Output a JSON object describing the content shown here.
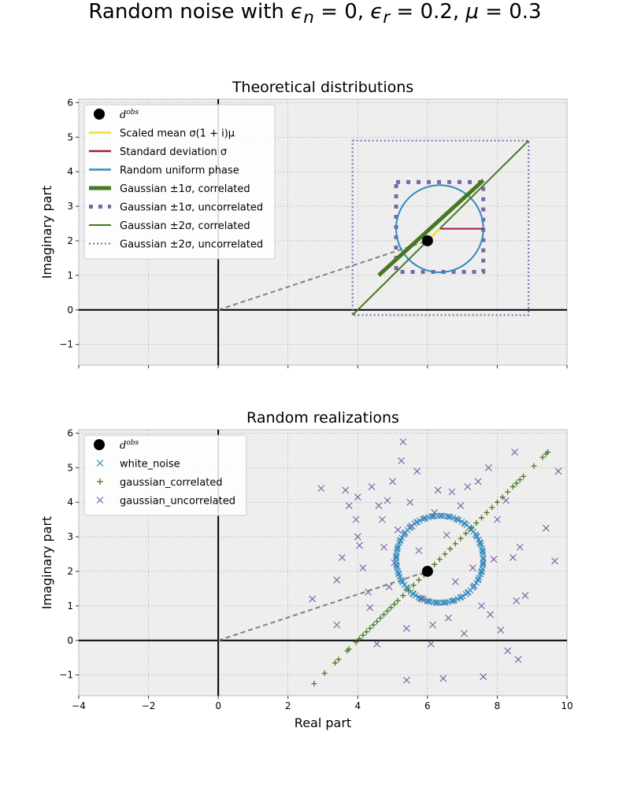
{
  "title": "Random noise with εn = 0, εr = 0.2, μ = 0.3",
  "colors": {
    "background": "#eeeeee",
    "grid": "#b0b0b0",
    "axis": "#000000",
    "obs": "#000000",
    "scaled_mean": "#f2dc38",
    "std": "#a21d34",
    "uniform_phase": "#348abd",
    "correlated": "#467821",
    "uncorrelated": "#7a68a6",
    "dashed": "#808080"
  },
  "chart_data": [
    {
      "type": "line",
      "title": "Theoretical distributions",
      "xlabel": "",
      "ylabel": "Imaginary part",
      "xlim": [
        -4,
        10
      ],
      "ylim": [
        -1.6,
        6.1
      ],
      "xticks": [
        "−4",
        "−2",
        "0",
        "2",
        "4",
        "6",
        "8",
        "10"
      ],
      "yticks": [
        "−1",
        "0",
        "1",
        "2",
        "3",
        "4",
        "5",
        "6"
      ],
      "tick_labels_x_visible": false,
      "grid": true,
      "legend_position": "top-left",
      "obs_point": [
        6.0,
        2.0
      ],
      "dashed_line": {
        "x": [
          0,
          6.0
        ],
        "y": [
          0,
          2.0
        ]
      },
      "circle": {
        "center": [
          6.35,
          2.35
        ],
        "radius": 1.25
      },
      "scaled_mean": {
        "x": [
          6.0,
          6.35
        ],
        "y": [
          2.0,
          2.35
        ]
      },
      "std_segment": {
        "x": [
          6.35,
          7.6
        ],
        "y": [
          2.35,
          2.35
        ]
      },
      "correlated_1sigma": {
        "x": [
          4.6,
          7.6
        ],
        "y": [
          1.0,
          3.75
        ]
      },
      "correlated_2sigma": {
        "x": [
          3.85,
          8.9
        ],
        "y": [
          -0.15,
          4.9
        ]
      },
      "uncorrelated_1sigma": {
        "x": [
          5.1,
          7.6
        ],
        "y": [
          1.1,
          3.7
        ]
      },
      "uncorrelated_2sigma": {
        "x": [
          3.85,
          8.9
        ],
        "y": [
          -0.15,
          4.9
        ]
      },
      "legend": [
        {
          "label": "d^obs",
          "style": "obs"
        },
        {
          "label": "Scaled mean σ(1 + i)μ",
          "style": "scaled_mean"
        },
        {
          "label": "Standard deviation σ",
          "style": "std"
        },
        {
          "label": "Random uniform phase",
          "style": "uniform_phase"
        },
        {
          "label": "Gaussian ±1σ, correlated",
          "style": "corr1"
        },
        {
          "label": "Gaussian ±1σ, uncorrelated",
          "style": "uncorr1"
        },
        {
          "label": "Gaussian ±2σ, correlated",
          "style": "corr2"
        },
        {
          "label": "Gaussian ±2σ, uncorrelated",
          "style": "uncorr2"
        }
      ]
    },
    {
      "type": "scatter",
      "title": "Random realizations",
      "xlabel": "Real part",
      "ylabel": "Imaginary part",
      "xlim": [
        -4,
        10
      ],
      "ylim": [
        -1.6,
        6.1
      ],
      "xticks": [
        "−4",
        "−2",
        "0",
        "2",
        "4",
        "6",
        "8",
        "10"
      ],
      "yticks": [
        "−1",
        "0",
        "1",
        "2",
        "3",
        "4",
        "5",
        "6"
      ],
      "tick_labels_x_visible": true,
      "grid": true,
      "legend_position": "top-left",
      "obs_point": [
        6.0,
        2.0
      ],
      "dashed_line": {
        "x": [
          0,
          6.0
        ],
        "y": [
          0,
          2.0
        ]
      },
      "white_noise": {
        "center": [
          6.35,
          2.35
        ],
        "radius": 1.25,
        "count": 120
      },
      "gaussian_correlated": [
        [
          2.75,
          -1.25
        ],
        [
          3.05,
          -0.95
        ],
        [
          3.35,
          -0.65
        ],
        [
          3.45,
          -0.55
        ],
        [
          3.7,
          -0.3
        ],
        [
          3.75,
          -0.25
        ],
        [
          3.95,
          -0.05
        ],
        [
          4.05,
          0.05
        ],
        [
          4.15,
          0.15
        ],
        [
          4.25,
          0.25
        ],
        [
          4.35,
          0.35
        ],
        [
          4.45,
          0.45
        ],
        [
          4.55,
          0.55
        ],
        [
          4.65,
          0.65
        ],
        [
          4.75,
          0.75
        ],
        [
          4.85,
          0.85
        ],
        [
          4.95,
          0.95
        ],
        [
          5.05,
          1.05
        ],
        [
          5.15,
          1.15
        ],
        [
          5.3,
          1.3
        ],
        [
          5.45,
          1.45
        ],
        [
          5.6,
          1.6
        ],
        [
          5.75,
          1.75
        ],
        [
          5.9,
          1.9
        ],
        [
          6.05,
          2.05
        ],
        [
          6.2,
          2.2
        ],
        [
          6.35,
          2.35
        ],
        [
          6.5,
          2.5
        ],
        [
          6.65,
          2.65
        ],
        [
          6.8,
          2.8
        ],
        [
          6.95,
          2.95
        ],
        [
          7.1,
          3.1
        ],
        [
          7.25,
          3.25
        ],
        [
          7.4,
          3.4
        ],
        [
          7.55,
          3.55
        ],
        [
          7.7,
          3.7
        ],
        [
          7.85,
          3.85
        ],
        [
          8.0,
          4.0
        ],
        [
          8.15,
          4.15
        ],
        [
          8.3,
          4.3
        ],
        [
          8.45,
          4.45
        ],
        [
          8.55,
          4.55
        ],
        [
          8.65,
          4.65
        ],
        [
          8.75,
          4.75
        ],
        [
          9.05,
          5.05
        ],
        [
          9.3,
          5.3
        ],
        [
          9.4,
          5.4
        ],
        [
          9.45,
          5.45
        ]
      ],
      "gaussian_uncorrelated": [
        [
          2.7,
          1.2
        ],
        [
          2.95,
          4.4
        ],
        [
          3.4,
          0.45
        ],
        [
          3.4,
          1.75
        ],
        [
          3.55,
          2.4
        ],
        [
          3.65,
          4.35
        ],
        [
          3.75,
          3.9
        ],
        [
          3.95,
          3.5
        ],
        [
          4.0,
          3.0
        ],
        [
          4.0,
          4.15
        ],
        [
          4.05,
          2.75
        ],
        [
          4.15,
          2.1
        ],
        [
          4.3,
          1.4
        ],
        [
          4.35,
          0.95
        ],
        [
          4.4,
          4.45
        ],
        [
          4.55,
          -0.1
        ],
        [
          4.6,
          3.9
        ],
        [
          4.7,
          3.5
        ],
        [
          4.75,
          2.7
        ],
        [
          4.85,
          4.05
        ],
        [
          4.9,
          1.55
        ],
        [
          5.0,
          4.6
        ],
        [
          5.05,
          2.25
        ],
        [
          5.15,
          3.2
        ],
        [
          5.25,
          5.2
        ],
        [
          5.3,
          5.75
        ],
        [
          5.4,
          0.35
        ],
        [
          5.4,
          -1.15
        ],
        [
          5.5,
          4.0
        ],
        [
          5.55,
          3.3
        ],
        [
          5.7,
          4.9
        ],
        [
          5.75,
          2.6
        ],
        [
          5.85,
          1.2
        ],
        [
          6.1,
          -0.1
        ],
        [
          6.15,
          0.45
        ],
        [
          6.2,
          3.7
        ],
        [
          6.3,
          4.35
        ],
        [
          6.45,
          -1.1
        ],
        [
          6.55,
          3.05
        ],
        [
          6.6,
          0.65
        ],
        [
          6.7,
          4.3
        ],
        [
          6.8,
          1.7
        ],
        [
          6.95,
          3.9
        ],
        [
          7.05,
          0.2
        ],
        [
          7.15,
          4.45
        ],
        [
          7.3,
          2.1
        ],
        [
          7.45,
          4.6
        ],
        [
          7.55,
          1.0
        ],
        [
          7.6,
          -1.05
        ],
        [
          7.75,
          5.0
        ],
        [
          7.8,
          0.75
        ],
        [
          7.9,
          2.35
        ],
        [
          8.0,
          3.5
        ],
        [
          8.1,
          0.3
        ],
        [
          8.3,
          -0.3
        ],
        [
          8.45,
          2.4
        ],
        [
          8.5,
          5.45
        ],
        [
          8.6,
          -0.55
        ],
        [
          8.65,
          2.7
        ],
        [
          8.8,
          1.3
        ],
        [
          9.4,
          3.25
        ],
        [
          9.65,
          2.3
        ],
        [
          9.75,
          4.9
        ],
        [
          8.55,
          1.15
        ],
        [
          8.25,
          4.05
        ]
      ],
      "legend": [
        {
          "label": "d^obs",
          "style": "obs"
        },
        {
          "label": "white_noise",
          "style": "white_noise"
        },
        {
          "label": "gaussian_correlated",
          "style": "gauss_corr"
        },
        {
          "label": "gaussian_uncorrelated",
          "style": "gauss_uncorr"
        }
      ]
    }
  ]
}
